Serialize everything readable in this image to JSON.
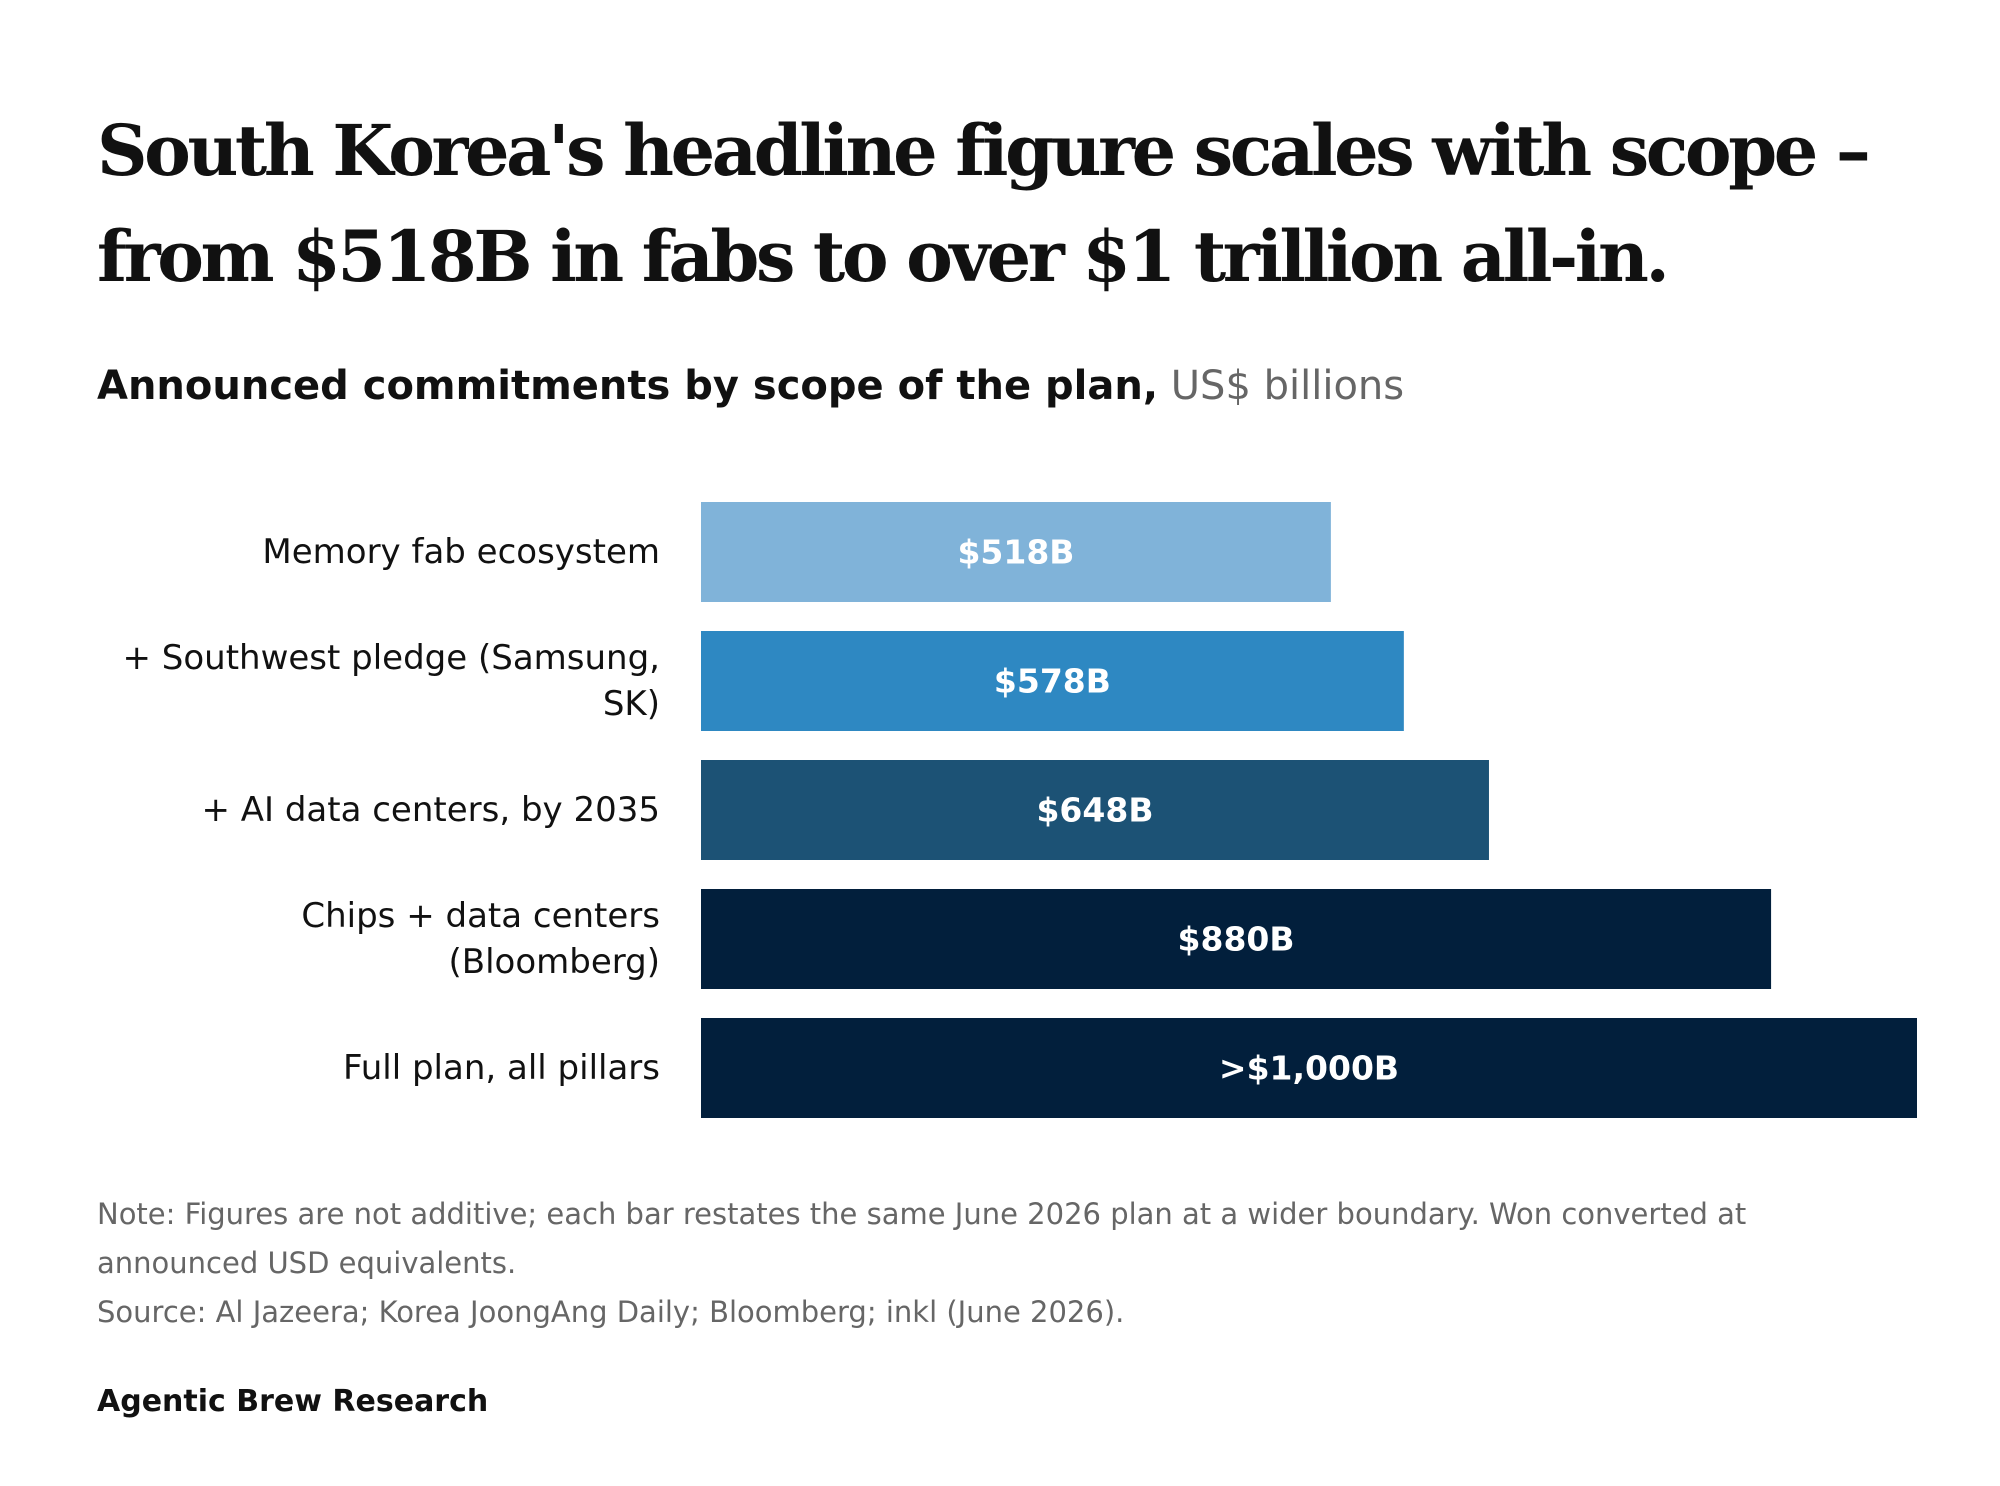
{
  "headline": "South Korea's headline figure scales with scope – from $518B in fabs to over $1 trillion all-in.",
  "subtitle": {
    "main": "Announced commitments by scope of the plan,",
    "unit": "US$ billions"
  },
  "chart_data": {
    "type": "bar",
    "orientation": "horizontal",
    "categories": [
      "Memory fab ecosystem",
      "+ Southwest pledge (Samsung, SK)",
      "+ AI data centers, by 2035",
      "Chips + data centers (Bloomberg)",
      "Full plan, all pillars"
    ],
    "category_lines": [
      [
        "Memory fab ecosystem"
      ],
      [
        "+ Southwest pledge (Samsung,",
        "SK)"
      ],
      [
        "+ AI data centers, by 2035"
      ],
      [
        "Chips + data centers",
        "(Bloomberg)"
      ],
      [
        "Full plan, all pillars"
      ]
    ],
    "values": [
      518,
      578,
      648,
      880,
      1000
    ],
    "data_labels": [
      "$518B",
      "$578B",
      "$648B",
      "$880B",
      ">$1,000B"
    ],
    "colors": [
      "#80b3d9",
      "#2e88c2",
      "#1c5275",
      "#021f3c",
      "#021f3c"
    ],
    "label_color": "#ffffff",
    "xlim": [
      0,
      1000
    ],
    "grid": false,
    "legend": "none"
  },
  "footnote": {
    "note": "Note: Figures are not additive; each bar restates the same June 2026 plan at a wider boundary. Won converted at announced USD equivalents.",
    "source": "Source: Al Jazeera; Korea JoongAng Daily; Bloomberg; inkl (June 2026)."
  },
  "byline": "Agentic Brew Research"
}
